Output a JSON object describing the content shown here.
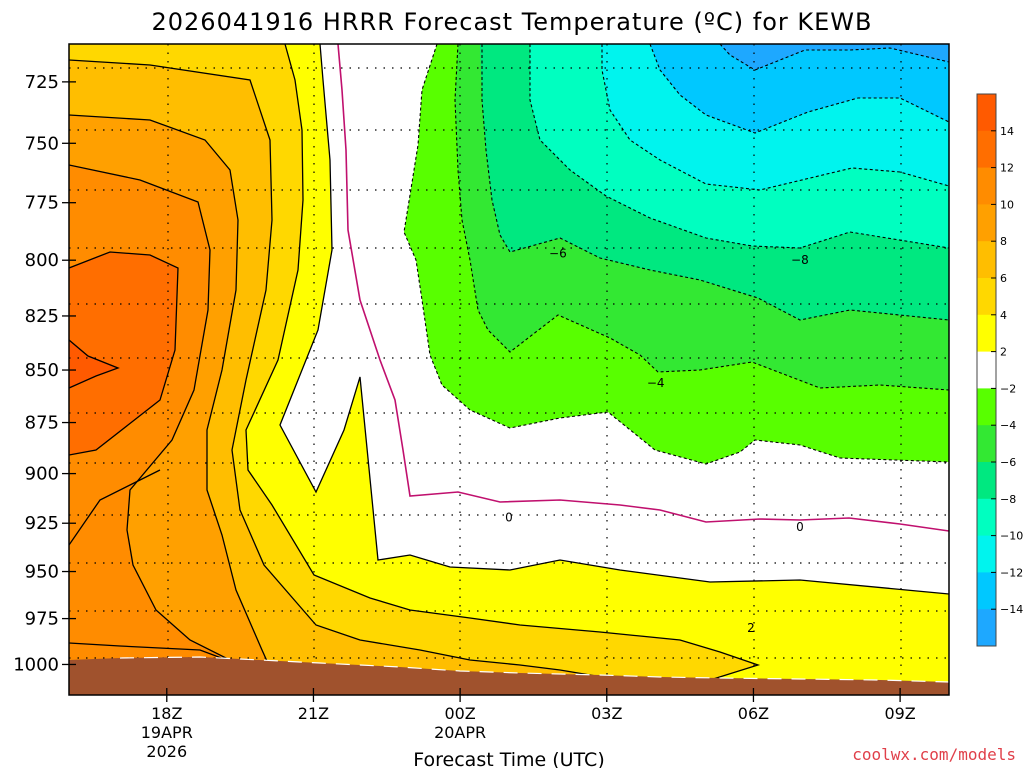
{
  "chart_data": {
    "type": "contour",
    "title": "2026041916 HRRR Forecast Temperature (ºC) for KEWB",
    "xlabel": "Forecast Time (UTC)",
    "ylabel": "",
    "credit": "coolwx.com/models",
    "x_ticks": [
      {
        "hour": 18,
        "lines": [
          "18Z",
          "19APR",
          "2026"
        ]
      },
      {
        "hour": 21,
        "lines": [
          "21Z"
        ]
      },
      {
        "hour": 24,
        "lines": [
          "00Z",
          "20APR"
        ]
      },
      {
        "hour": 27,
        "lines": [
          "03Z"
        ]
      },
      {
        "hour": 30,
        "lines": [
          "06Z"
        ]
      },
      {
        "hour": 33,
        "lines": [
          "09Z"
        ]
      }
    ],
    "x_range_hours": [
      16,
      34
    ],
    "y_range_hpa": [
      1017,
      710
    ],
    "y_ticks": [
      725,
      750,
      775,
      800,
      825,
      850,
      875,
      900,
      925,
      950,
      975,
      1000
    ],
    "grid": true,
    "colorbar": {
      "labels": [
        "14",
        "12",
        "10",
        "8",
        "6",
        "4",
        "2",
        "−2",
        "−4",
        "−6",
        "−8",
        "−10",
        "−12",
        "−14"
      ],
      "colors": [
        "#ff5a00",
        "#ff6e00",
        "#ff8c00",
        "#ffa000",
        "#ffbe00",
        "#ffd800",
        "#ffff00",
        "#ffffff",
        "#58ff00",
        "#33e833",
        "#00e880",
        "#00ffc0",
        "#00f4ee",
        "#00c8ff",
        "#1ea8ff"
      ]
    },
    "contour_labels": [
      {
        "text": "0",
        "hour": 25.0,
        "hpa": 922
      },
      {
        "text": "0",
        "hour": 30.95,
        "hpa": 927
      },
      {
        "text": "2",
        "hour": 29.95,
        "hpa": 980
      },
      {
        "text": "−4",
        "hour": 28.0,
        "hpa": 856
      },
      {
        "text": "−6",
        "hour": 26.0,
        "hpa": 797
      },
      {
        "text": "−8",
        "hour": 30.95,
        "hpa": 800
      }
    ]
  }
}
